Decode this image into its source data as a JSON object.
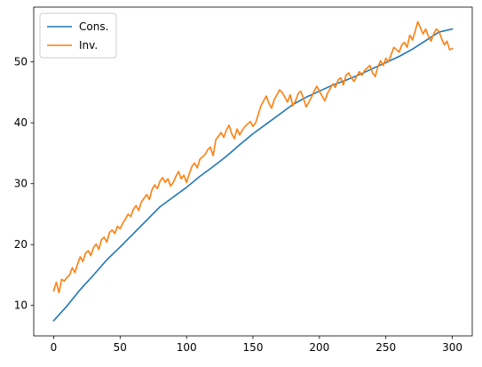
{
  "chart_data": {
    "type": "line",
    "title": "",
    "xlabel": "",
    "ylabel": "",
    "xlim": [
      -15,
      315
    ],
    "ylim": [
      5,
      59
    ],
    "x_ticks": [
      0,
      50,
      100,
      150,
      200,
      250,
      300
    ],
    "y_ticks": [
      10,
      20,
      30,
      40,
      50
    ],
    "x_tick_labels": [
      "0",
      "50",
      "100",
      "150",
      "200",
      "250",
      "300"
    ],
    "y_tick_labels": [
      "10",
      "20",
      "30",
      "40",
      "50"
    ],
    "grid": false,
    "legend_position": "upper left",
    "series": [
      {
        "name": "Cons.",
        "color": "#1f77b4",
        "x": [
          0,
          10,
          20,
          30,
          40,
          50,
          60,
          70,
          80,
          90,
          100,
          110,
          120,
          130,
          140,
          150,
          160,
          170,
          180,
          190,
          200,
          210,
          220,
          230,
          240,
          250,
          260,
          270,
          280,
          290,
          300
        ],
        "values": [
          7.5,
          9.9,
          12.6,
          15.0,
          17.5,
          19.6,
          21.8,
          24.0,
          26.2,
          27.8,
          29.4,
          31.2,
          32.8,
          34.5,
          36.4,
          38.2,
          39.8,
          41.4,
          43.0,
          44.2,
          45.2,
          46.2,
          47.0,
          47.9,
          48.9,
          49.9,
          50.9,
          52.1,
          53.5,
          54.9,
          55.4
        ]
      },
      {
        "name": "Inv.",
        "color": "#ff7f0e",
        "x": [
          0,
          2,
          4,
          6,
          8,
          10,
          12,
          14,
          16,
          18,
          20,
          22,
          24,
          26,
          28,
          30,
          32,
          34,
          36,
          38,
          40,
          42,
          44,
          46,
          48,
          50,
          52,
          54,
          56,
          58,
          60,
          62,
          64,
          66,
          68,
          70,
          72,
          74,
          76,
          78,
          80,
          82,
          84,
          86,
          88,
          90,
          92,
          94,
          96,
          98,
          100,
          102,
          104,
          106,
          108,
          110,
          112,
          114,
          116,
          118,
          120,
          122,
          124,
          126,
          128,
          130,
          132,
          134,
          136,
          138,
          140,
          142,
          144,
          146,
          148,
          150,
          152,
          154,
          156,
          158,
          160,
          162,
          164,
          166,
          168,
          170,
          172,
          174,
          176,
          178,
          180,
          182,
          184,
          186,
          188,
          190,
          192,
          194,
          196,
          198,
          200,
          202,
          204,
          206,
          208,
          210,
          212,
          214,
          216,
          218,
          220,
          222,
          224,
          226,
          228,
          230,
          232,
          234,
          236,
          238,
          240,
          242,
          244,
          246,
          248,
          250,
          252,
          254,
          256,
          258,
          260,
          262,
          264,
          266,
          268,
          270,
          272,
          274,
          276,
          278,
          280,
          282,
          284,
          286,
          288,
          290,
          292,
          294,
          296,
          298,
          300
        ],
        "values": [
          12.4,
          13.8,
          12.1,
          14.3,
          14.0,
          14.6,
          15.0,
          16.2,
          15.4,
          16.8,
          18.0,
          17.2,
          18.6,
          19.0,
          18.2,
          19.5,
          20.1,
          19.2,
          20.8,
          21.2,
          20.4,
          22.0,
          22.4,
          21.8,
          23.0,
          22.6,
          23.5,
          24.2,
          25.0,
          24.6,
          25.8,
          26.4,
          25.6,
          27.0,
          27.6,
          28.2,
          27.4,
          29.0,
          29.8,
          29.2,
          30.4,
          31.0,
          30.2,
          30.8,
          29.6,
          30.2,
          31.2,
          32.0,
          30.8,
          31.4,
          30.2,
          31.6,
          32.8,
          33.4,
          32.6,
          34.0,
          34.4,
          34.8,
          35.6,
          36.0,
          34.6,
          37.2,
          37.8,
          38.4,
          37.6,
          38.8,
          39.6,
          38.2,
          37.4,
          39.0,
          38.0,
          38.8,
          39.4,
          39.8,
          40.2,
          39.4,
          40.0,
          41.4,
          42.8,
          43.6,
          44.4,
          43.2,
          42.4,
          43.8,
          44.6,
          45.4,
          45.0,
          44.2,
          43.4,
          44.6,
          42.8,
          43.6,
          44.8,
          45.2,
          44.0,
          42.6,
          43.4,
          44.2,
          45.2,
          46.0,
          45.2,
          44.4,
          43.6,
          44.8,
          45.6,
          46.4,
          45.8,
          47.0,
          47.4,
          46.2,
          47.8,
          48.2,
          47.4,
          46.8,
          47.6,
          48.4,
          47.8,
          48.6,
          49.0,
          49.4,
          48.2,
          47.6,
          49.2,
          50.2,
          49.4,
          50.6,
          50.0,
          51.2,
          52.4,
          52.0,
          51.6,
          52.8,
          53.2,
          52.4,
          54.4,
          53.6,
          55.0,
          56.6,
          55.6,
          54.6,
          55.4,
          54.2,
          53.4,
          54.6,
          55.4,
          55.0,
          53.8,
          52.8,
          53.4,
          52.0,
          52.2
        ]
      }
    ]
  }
}
